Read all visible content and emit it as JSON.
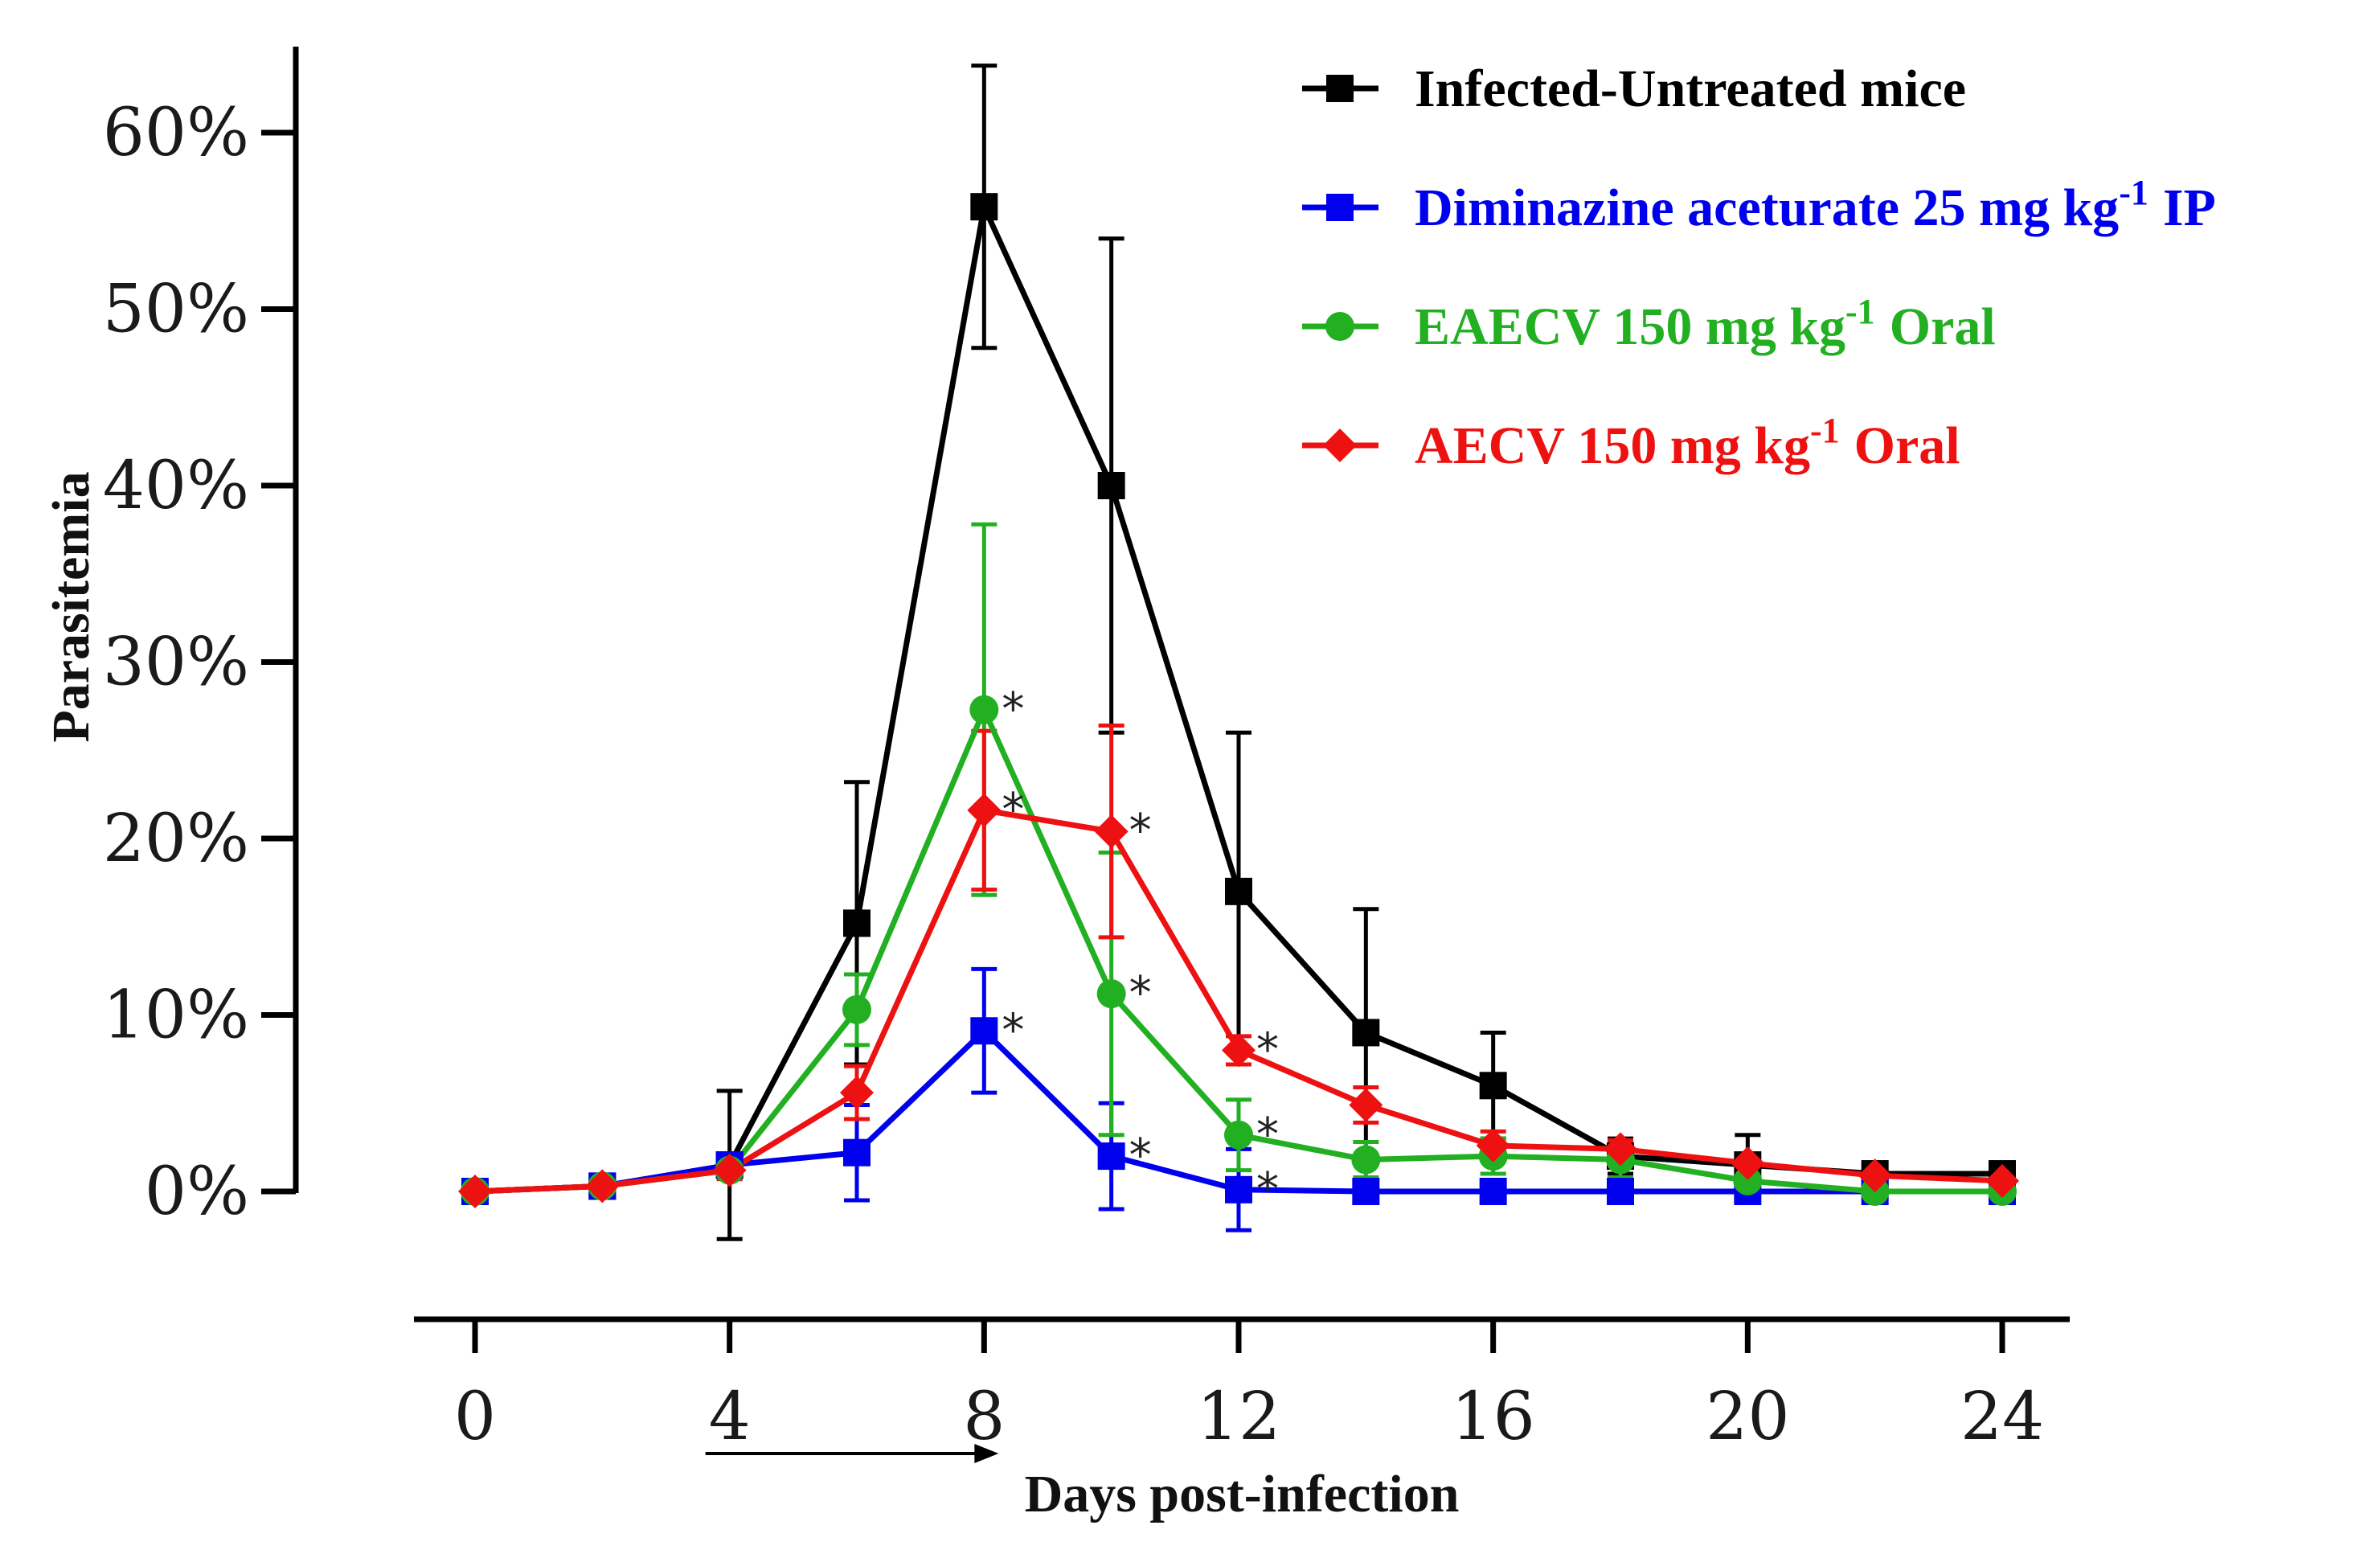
{
  "chart_data": {
    "type": "line",
    "xlabel": "Days post-infection",
    "ylabel": "Parasitemia",
    "x_ticks": [
      0,
      4,
      8,
      12,
      16,
      20,
      24
    ],
    "y_ticks": [
      "0%",
      "10%",
      "20%",
      "30%",
      "40%",
      "50%",
      "60%"
    ],
    "xlim": [
      0,
      24
    ],
    "ylim": [
      0,
      60
    ],
    "treatment_arrow_days": [
      4,
      8
    ],
    "legend_position": "top-right",
    "grid": false,
    "x": [
      0,
      2,
      4,
      6,
      8,
      10,
      12,
      14,
      16,
      18,
      20,
      22,
      24
    ],
    "series": [
      {
        "name": "Infected-Untreated mice",
        "color": "#000000",
        "marker": "square",
        "values": [
          0,
          0.3,
          1.5,
          15.2,
          55.8,
          40.0,
          17.0,
          9.0,
          6.0,
          2.0,
          1.5,
          1.0,
          1.0
        ],
        "errors": [
          0,
          0.3,
          4.2,
          8.0,
          8.0,
          14.0,
          9.0,
          7.0,
          3.0,
          1.0,
          1.7,
          0.5,
          0.5
        ],
        "significance": []
      },
      {
        "name": "Diminazine aceturate  25 mg kg",
        "name_sup": "-1",
        "name_suffix": "IP",
        "color": "#0000ee",
        "marker": "square",
        "values": [
          0,
          0.3,
          1.5,
          2.2,
          9.1,
          2.0,
          0.1,
          0,
          0,
          0,
          0,
          0,
          0
        ],
        "errors": [
          0,
          0.3,
          0.5,
          2.7,
          3.5,
          3.0,
          2.3,
          0.5,
          0.3,
          0.3,
          0.3,
          0.3,
          0.3
        ],
        "significance": [
          8,
          10,
          12
        ]
      },
      {
        "name": "EAECV 150 mg kg",
        "name_sup": "-1",
        "name_suffix": "Oral",
        "color": "#22b022",
        "marker": "circle",
        "values": [
          0,
          0.3,
          1.2,
          10.3,
          27.3,
          11.2,
          3.2,
          1.8,
          2.0,
          1.8,
          0.6,
          0,
          0
        ],
        "errors": [
          0,
          0.3,
          0.5,
          2.0,
          10.5,
          8.0,
          2.0,
          1.0,
          1.0,
          1.0,
          0.6,
          0.5,
          0.4
        ],
        "significance": [
          8,
          10,
          12
        ]
      },
      {
        "name": "AECV 150 mg kg",
        "name_sup": "-1",
        "name_suffix": "Oral",
        "color": "#ee1111",
        "marker": "diamond",
        "values": [
          0,
          0.3,
          1.2,
          5.6,
          21.6,
          20.4,
          8.0,
          4.9,
          2.6,
          2.4,
          1.6,
          0.9,
          0.6
        ],
        "errors": [
          0,
          0.3,
          0.5,
          1.5,
          4.5,
          6.0,
          0.8,
          1.0,
          0.8,
          0.5,
          0.5,
          0.5,
          0.3
        ],
        "significance": [
          8,
          10,
          12
        ]
      }
    ]
  }
}
